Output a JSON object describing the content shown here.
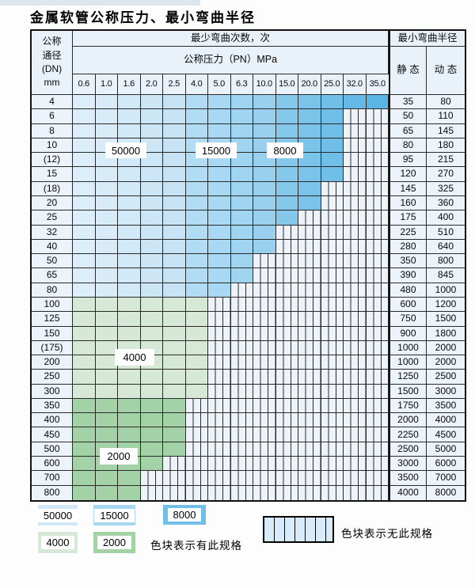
{
  "title": "金属软管公称压力、最小弯曲半径",
  "table": {
    "header": {
      "dn_lines": [
        "公称",
        "通径",
        "(DN)",
        "mm"
      ],
      "bend_times_label": "最少弯曲次数，次",
      "pressure_label": "公称压力（PN）MPa",
      "radius_label": "最小弯曲半径",
      "static_label": "静 态",
      "dynamic_label": "动 态",
      "pressure_columns": [
        "0.6",
        "1.0",
        "1.6",
        "2.0",
        "2.5",
        "4.0",
        "5.0",
        "6.3",
        "10.0",
        "15.0",
        "20.0",
        "25.0",
        "32.0",
        "35.0"
      ]
    },
    "overlay_labels": [
      {
        "text": "50000"
      },
      {
        "text": "15000"
      },
      {
        "text": "8000"
      },
      {
        "text": "4000"
      },
      {
        "text": "2000"
      }
    ],
    "rows": [
      {
        "dn": "4",
        "through": 14,
        "band": "blue",
        "static": "35",
        "dynamic": "80"
      },
      {
        "dn": "6",
        "through": 12,
        "band": "blue",
        "static": "50",
        "dynamic": "110"
      },
      {
        "dn": "8",
        "through": 12,
        "band": "blue",
        "static": "65",
        "dynamic": "145"
      },
      {
        "dn": "10",
        "through": 12,
        "band": "blue",
        "static": "80",
        "dynamic": "180"
      },
      {
        "dn": "(12)",
        "through": 12,
        "band": "blue",
        "static": "95",
        "dynamic": "215"
      },
      {
        "dn": "15",
        "through": 12,
        "band": "blue",
        "static": "120",
        "dynamic": "270"
      },
      {
        "dn": "(18)",
        "through": 11,
        "band": "blue",
        "static": "145",
        "dynamic": "325"
      },
      {
        "dn": "20",
        "through": 11,
        "band": "blue",
        "static": "160",
        "dynamic": "360"
      },
      {
        "dn": "25",
        "through": 10,
        "band": "blue",
        "static": "175",
        "dynamic": "400"
      },
      {
        "dn": "32",
        "through": 9,
        "band": "blue",
        "static": "225",
        "dynamic": "510"
      },
      {
        "dn": "40",
        "through": 9,
        "band": "blue",
        "static": "280",
        "dynamic": "640"
      },
      {
        "dn": "50",
        "through": 8,
        "band": "blue",
        "static": "350",
        "dynamic": "800"
      },
      {
        "dn": "65",
        "through": 8,
        "band": "blue",
        "static": "390",
        "dynamic": "845"
      },
      {
        "dn": "80",
        "through": 7,
        "band": "blue",
        "static": "480",
        "dynamic": "1000"
      },
      {
        "dn": "100",
        "through": 6,
        "band": "green4000",
        "static": "600",
        "dynamic": "1200"
      },
      {
        "dn": "125",
        "through": 6,
        "band": "green4000",
        "static": "750",
        "dynamic": "1500"
      },
      {
        "dn": "150",
        "through": 6,
        "band": "green4000",
        "static": "900",
        "dynamic": "1800"
      },
      {
        "dn": "(175)",
        "through": 6,
        "band": "green4000",
        "static": "1000",
        "dynamic": "2000"
      },
      {
        "dn": "200",
        "through": 6,
        "band": "green4000",
        "static": "1000",
        "dynamic": "2000"
      },
      {
        "dn": "250",
        "through": 6,
        "band": "green4000",
        "static": "1250",
        "dynamic": "2500"
      },
      {
        "dn": "300",
        "through": 6,
        "band": "green4000",
        "static": "1500",
        "dynamic": "3000"
      },
      {
        "dn": "350",
        "through": 5,
        "band": "green2000",
        "static": "1750",
        "dynamic": "3500"
      },
      {
        "dn": "400",
        "through": 5,
        "band": "green2000",
        "static": "2000",
        "dynamic": "4000"
      },
      {
        "dn": "450",
        "through": 5,
        "band": "green2000",
        "static": "2250",
        "dynamic": "4500"
      },
      {
        "dn": "500",
        "through": 5,
        "band": "green2000",
        "static": "2500",
        "dynamic": "5000"
      },
      {
        "dn": "600",
        "through": 4,
        "band": "green2000",
        "static": "3000",
        "dynamic": "6000"
      },
      {
        "dn": "700",
        "through": 3,
        "band": "green2000",
        "static": "3500",
        "dynamic": "7000"
      },
      {
        "dn": "800",
        "through": 3,
        "band": "green2000",
        "static": "4000",
        "dynamic": "8000"
      }
    ]
  },
  "legend": {
    "items": [
      {
        "label": "50000",
        "color_key": "blue_50000"
      },
      {
        "label": "15000",
        "color_key": "blue_15000"
      },
      {
        "label": "8000",
        "color_key": "blue_8000"
      },
      {
        "label": "4000",
        "color_key": "green_4000"
      },
      {
        "label": "2000",
        "color_key": "green_2000"
      }
    ],
    "has_spec_text": "色块表示有此规格",
    "no_spec_text": "色块表示无此规格"
  },
  "colors": {
    "blue_50000": "#cfe7f6",
    "blue_15000": "#a5d7f1",
    "blue_8000": "#6fbfe8",
    "green_4000": "#d6e9d6",
    "green_2000": "#a2d2a6",
    "blue_columns": [
      "#dceef9",
      "#d7ebf8",
      "#d2e9f7",
      "#cde6f6",
      "#c8e3f5",
      "#b0dcf4",
      "#a8d8f2",
      "#a0d4f0",
      "#98d0ee",
      "#84c9ec",
      "#7ac4ea",
      "#70bfe8",
      "#66b9e6",
      "#5cb4e4"
    ],
    "nospec_bg": "#eef3f9"
  }
}
